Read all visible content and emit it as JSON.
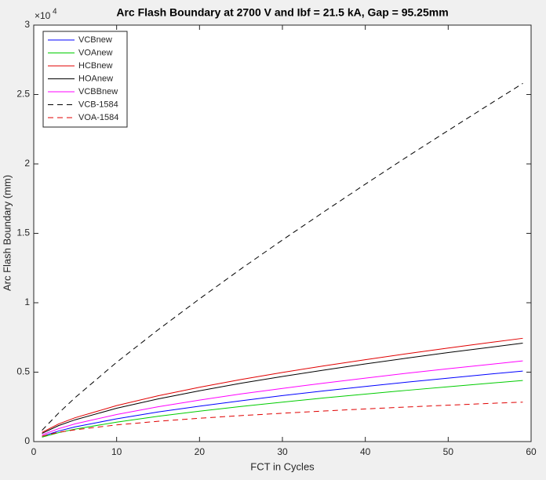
{
  "chart_data": {
    "type": "line",
    "title": "Arc Flash Boundary at 2700 V and Ibf = 21.5 kA, Gap = 95.25mm",
    "xlabel": "FCT in Cycles",
    "ylabel": "Arc Flash Boundary (mm)",
    "y_exponent_base": "×10",
    "y_exponent": "4",
    "x": [
      1,
      3,
      5,
      10,
      15,
      20,
      25,
      30,
      35,
      40,
      45,
      50,
      55,
      59
    ],
    "series": [
      {
        "name": "VCBnew",
        "color": "#0000ff",
        "dashed": false,
        "values": [
          0.038,
          0.076,
          0.106,
          0.164,
          0.213,
          0.255,
          0.294,
          0.331,
          0.365,
          0.397,
          0.428,
          0.457,
          0.486,
          0.508
        ]
      },
      {
        "name": "VOAnew",
        "color": "#00cc00",
        "dashed": false,
        "values": [
          0.032,
          0.064,
          0.09,
          0.14,
          0.182,
          0.219,
          0.253,
          0.284,
          0.314,
          0.342,
          0.369,
          0.395,
          0.42,
          0.44
        ]
      },
      {
        "name": "HCBnew",
        "color": "#e00000",
        "dashed": false,
        "values": [
          0.066,
          0.127,
          0.172,
          0.259,
          0.33,
          0.391,
          0.447,
          0.498,
          0.545,
          0.59,
          0.633,
          0.674,
          0.713,
          0.744
        ]
      },
      {
        "name": "HOAnew",
        "color": "#000000",
        "dashed": false,
        "values": [
          0.059,
          0.115,
          0.157,
          0.24,
          0.307,
          0.366,
          0.42,
          0.469,
          0.515,
          0.559,
          0.601,
          0.641,
          0.679,
          0.709
        ]
      },
      {
        "name": "VCBBnew",
        "color": "#ff00ff",
        "dashed": false,
        "values": [
          0.048,
          0.093,
          0.128,
          0.195,
          0.251,
          0.299,
          0.343,
          0.383,
          0.421,
          0.457,
          0.492,
          0.525,
          0.556,
          0.581
        ]
      },
      {
        "name": "VCB-1584",
        "color": "#000000",
        "dashed": true,
        "values": [
          0.081,
          0.205,
          0.317,
          0.571,
          0.805,
          1.028,
          1.244,
          1.452,
          1.655,
          1.854,
          2.05,
          2.241,
          2.43,
          2.58
        ]
      },
      {
        "name": "VOA-1584",
        "color": "#e00000",
        "dashed": true,
        "values": [
          0.039,
          0.067,
          0.085,
          0.12,
          0.146,
          0.168,
          0.187,
          0.204,
          0.22,
          0.235,
          0.249,
          0.262,
          0.275,
          0.284
        ]
      }
    ],
    "xlim": [
      0,
      60
    ],
    "xticks": [
      0,
      10,
      20,
      30,
      40,
      50,
      60
    ],
    "ylim": [
      0,
      3
    ],
    "yticks": [
      0,
      0.5,
      1,
      1.5,
      2,
      2.5,
      3
    ],
    "grid": false,
    "legend": "top-left"
  }
}
